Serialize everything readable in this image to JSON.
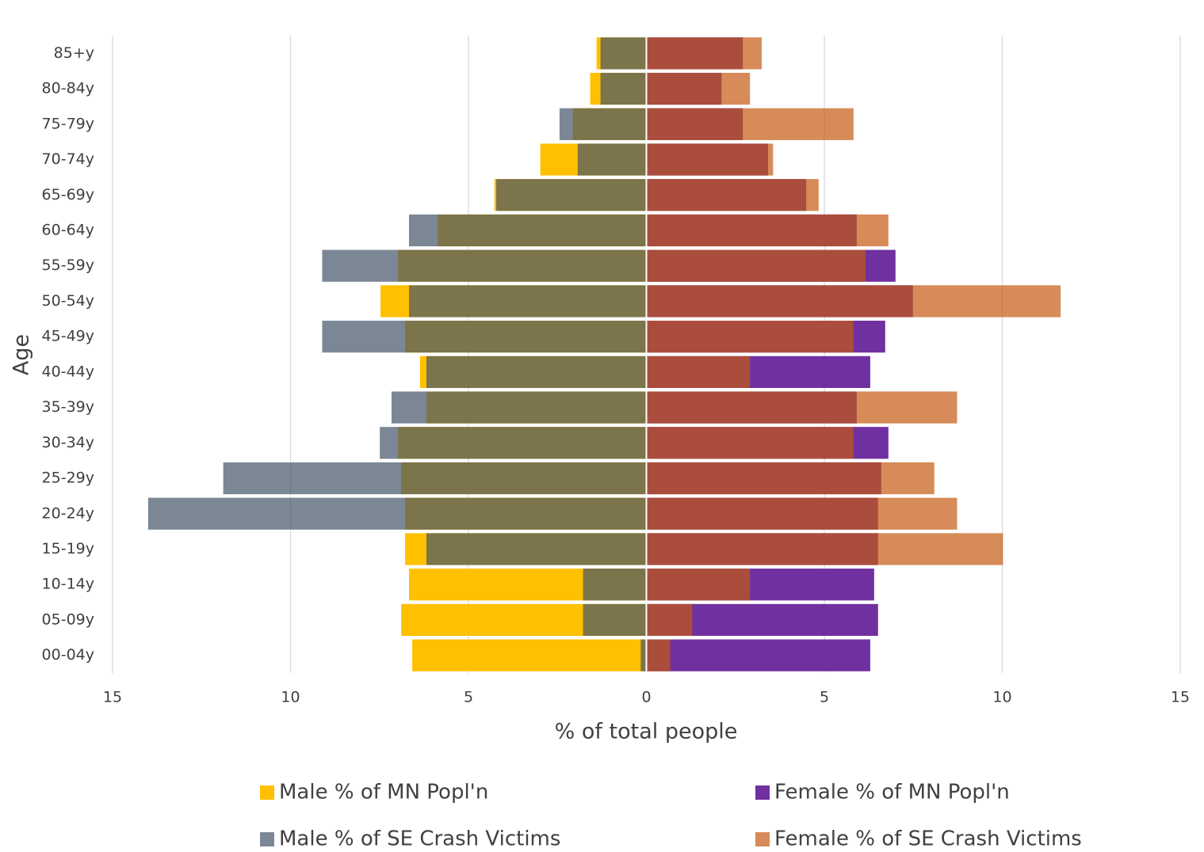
{
  "chart_data": {
    "type": "pyramid",
    "xlabel": "% of total people",
    "ylabel": "Age",
    "categories": [
      "00-04y",
      "05-09y",
      "10-14y",
      "15-19y",
      "20-24y",
      "25-29y",
      "30-34y",
      "35-39y",
      "40-44y",
      "45-49y",
      "50-54y",
      "55-59y",
      "60-64y",
      "65-69y",
      "70-74y",
      "75-79y",
      "80-84y",
      "85+y"
    ],
    "series": [
      {
        "name": "Male % of MN Popl'n",
        "color": "#ffc000",
        "side": "left",
        "values": [
          6.58,
          6.89,
          6.67,
          6.78,
          6.78,
          6.89,
          6.98,
          6.18,
          6.36,
          6.78,
          7.47,
          6.98,
          5.87,
          4.27,
          2.98,
          2.07,
          1.58,
          1.4
        ]
      },
      {
        "name": "Male % of SE Crash Victims",
        "color": "#44546ab3",
        "side": "left",
        "values": [
          0.16,
          1.78,
          1.78,
          6.18,
          14.0,
          11.89,
          7.49,
          7.16,
          6.18,
          9.11,
          6.67,
          9.11,
          6.67,
          4.22,
          1.93,
          2.44,
          1.29,
          1.29
        ]
      },
      {
        "name": "Female % of MN Popl'n",
        "color": "#7030a0",
        "side": "right",
        "values": [
          6.29,
          6.51,
          6.4,
          6.51,
          6.51,
          6.6,
          6.8,
          5.91,
          6.29,
          6.71,
          7.49,
          7.0,
          5.91,
          4.49,
          3.42,
          2.71,
          2.11,
          2.71
        ]
      },
      {
        "name": "Female % of SE Crash Victims",
        "color": "#c55a11b3",
        "side": "right",
        "values": [
          0.67,
          1.29,
          2.91,
          10.02,
          8.73,
          8.09,
          5.82,
          8.73,
          2.91,
          5.82,
          11.64,
          6.16,
          6.8,
          4.84,
          3.56,
          5.82,
          2.91,
          3.24
        ]
      }
    ],
    "xlim": [
      -15,
      15
    ],
    "xticks": [
      {
        "value": -15,
        "label": "15"
      },
      {
        "value": -10,
        "label": "10"
      },
      {
        "value": -5,
        "label": "5"
      },
      0,
      5,
      10,
      15
    ],
    "grid": true
  }
}
